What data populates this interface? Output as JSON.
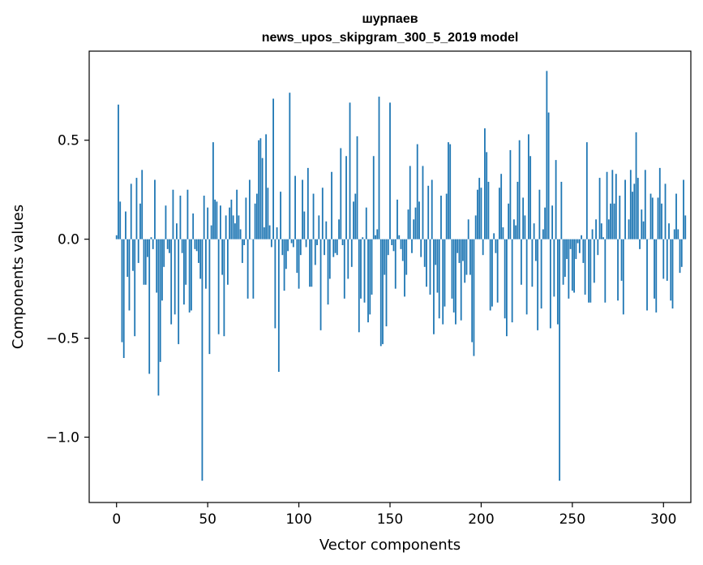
{
  "chart_data": {
    "type": "bar",
    "title": "шурпаев",
    "subtitle": "news_upos_skipgram_300_5_2019 model",
    "xlabel": "Vector components",
    "ylabel": "Components values",
    "xlim": [
      -15,
      315
    ],
    "ylim": [
      -1.33,
      0.95
    ],
    "xticks": [
      0,
      50,
      100,
      150,
      200,
      250,
      300
    ],
    "xtick_labels": [
      "0",
      "50",
      "100",
      "150",
      "200",
      "250",
      "300"
    ],
    "yticks": [
      -1.0,
      -0.5,
      0.0,
      0.5
    ],
    "ytick_labels": [
      "−1.0",
      "−0.5",
      "0.0",
      "0.5"
    ],
    "bar_color": "#1f77b4",
    "grid": false,
    "values": [
      0.02,
      0.68,
      0.19,
      -0.52,
      -0.6,
      0.14,
      -0.19,
      -0.36,
      0.28,
      -0.16,
      -0.49,
      0.31,
      -0.12,
      0.18,
      0.35,
      -0.23,
      -0.23,
      -0.09,
      -0.68,
      0.01,
      -0.05,
      0.3,
      -0.27,
      -0.79,
      -0.62,
      -0.31,
      -0.14,
      0.17,
      -0.05,
      -0.07,
      -0.43,
      0.25,
      -0.38,
      0.08,
      -0.53,
      0.22,
      -0.07,
      -0.33,
      -0.23,
      0.25,
      -0.37,
      -0.36,
      0.13,
      -0.05,
      -0.06,
      -0.12,
      -0.2,
      -1.22,
      0.22,
      -0.25,
      0.16,
      -0.58,
      0.07,
      0.49,
      0.2,
      0.19,
      -0.48,
      0.17,
      -0.18,
      -0.49,
      0.12,
      -0.23,
      0.16,
      0.2,
      0.12,
      0.08,
      0.25,
      0.12,
      0.05,
      -0.12,
      -0.03,
      0.21,
      -0.3,
      0.3,
      0.0,
      -0.3,
      0.18,
      0.23,
      0.5,
      0.51,
      0.41,
      0.06,
      0.53,
      0.26,
      0.07,
      -0.04,
      0.71,
      -0.45,
      0.06,
      -0.67,
      0.24,
      -0.08,
      -0.26,
      -0.15,
      -0.06,
      0.74,
      -0.02,
      -0.04,
      0.32,
      -0.17,
      -0.25,
      -0.08,
      0.3,
      0.14,
      -0.04,
      0.36,
      -0.24,
      -0.24,
      0.23,
      -0.13,
      -0.03,
      0.12,
      -0.46,
      0.26,
      -0.08,
      0.09,
      -0.33,
      -0.2,
      0.34,
      -0.09,
      -0.07,
      -0.08,
      0.1,
      0.46,
      -0.03,
      -0.3,
      0.42,
      -0.2,
      0.69,
      -0.14,
      0.19,
      0.23,
      0.52,
      -0.47,
      -0.3,
      0.01,
      -0.32,
      0.16,
      -0.42,
      -0.38,
      -0.28,
      0.42,
      0.02,
      0.05,
      0.72,
      -0.54,
      -0.53,
      -0.18,
      -0.44,
      -0.08,
      0.69,
      -0.03,
      -0.06,
      -0.25,
      0.2,
      0.02,
      -0.05,
      -0.11,
      -0.29,
      -0.18,
      0.15,
      0.37,
      -0.07,
      0.1,
      0.16,
      0.48,
      0.19,
      -0.09,
      0.37,
      -0.14,
      -0.24,
      0.27,
      -0.28,
      0.3,
      -0.48,
      -0.13,
      -0.27,
      -0.4,
      0.22,
      -0.43,
      -0.34,
      0.23,
      0.49,
      0.48,
      -0.3,
      -0.37,
      -0.43,
      -0.07,
      -0.12,
      -0.41,
      -0.11,
      -0.22,
      -0.18,
      0.1,
      -0.18,
      -0.52,
      -0.59,
      0.12,
      0.25,
      0.31,
      0.26,
      -0.08,
      0.56,
      0.44,
      0.29,
      -0.36,
      -0.34,
      0.03,
      -0.07,
      -0.32,
      0.26,
      0.33,
      0.06,
      -0.4,
      -0.49,
      0.18,
      0.45,
      -0.42,
      0.1,
      0.07,
      0.29,
      0.5,
      -0.23,
      0.21,
      0.12,
      -0.38,
      0.53,
      0.42,
      -0.24,
      0.08,
      -0.11,
      -0.46,
      0.25,
      -0.35,
      0.05,
      0.16,
      0.85,
      0.64,
      -0.45,
      0.17,
      -0.29,
      0.4,
      -0.43,
      -1.22,
      0.29,
      -0.23,
      -0.19,
      -0.1,
      -0.3,
      -0.05,
      -0.26,
      -0.27,
      -0.1,
      -0.02,
      -0.07,
      0.02,
      -0.12,
      -0.28,
      0.49,
      -0.32,
      -0.32,
      0.05,
      -0.22,
      0.1,
      -0.08,
      0.31,
      0.08,
      0.01,
      -0.32,
      0.34,
      0.1,
      0.18,
      0.35,
      0.18,
      0.33,
      -0.31,
      0.22,
      -0.21,
      -0.38,
      0.3,
      0.0,
      0.1,
      0.35,
      0.24,
      0.28,
      0.54,
      0.31,
      -0.05,
      0.15,
      0.09,
      0.35,
      -0.36,
      0.0,
      0.23,
      0.21,
      -0.3,
      -0.37,
      0.21,
      0.36,
      0.18,
      -0.2,
      0.28,
      -0.21,
      0.08,
      -0.31,
      -0.35,
      0.05,
      0.23,
      0.05,
      -0.17,
      -0.14,
      0.3,
      0.12
    ]
  }
}
